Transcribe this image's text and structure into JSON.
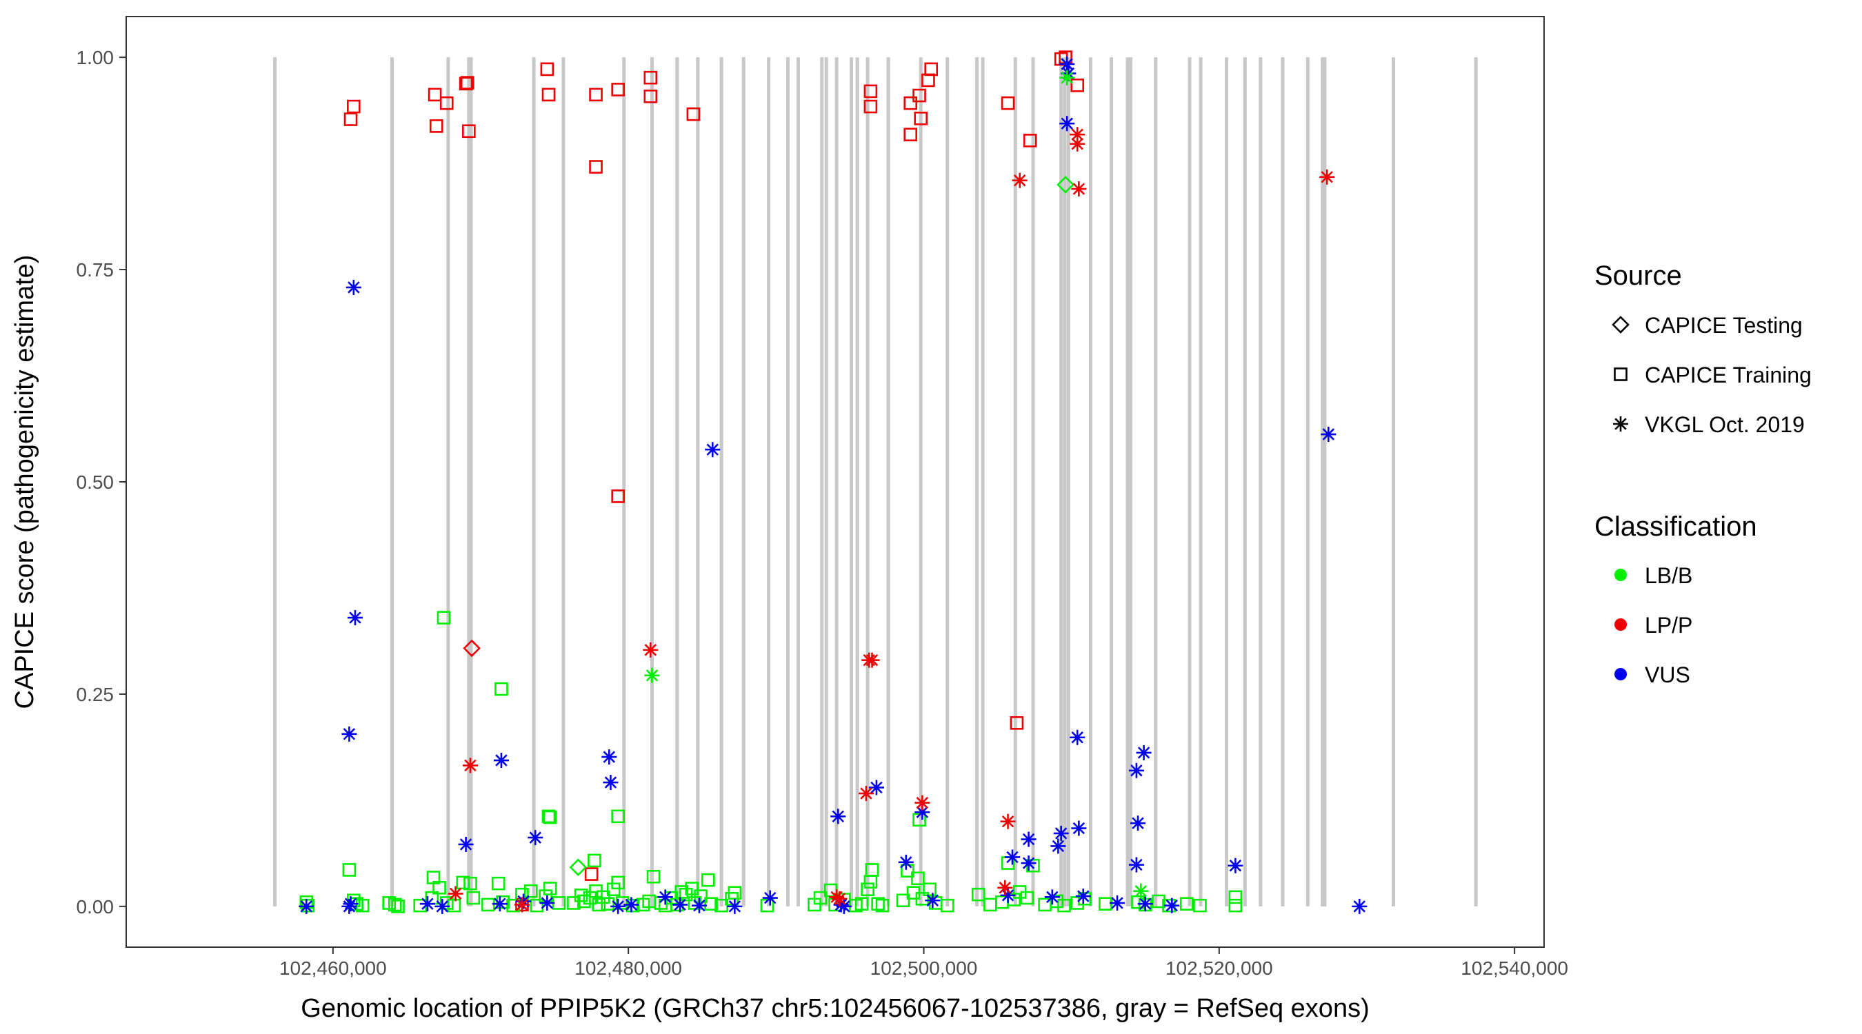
{
  "chart_data": {
    "type": "scatter",
    "xlabel": "Genomic location of PPIP5K2 (GRCh37 chr5:102456067-102537386, gray = RefSeq exons)",
    "ylabel": "CAPICE score (pathogenicity estimate)",
    "xlim": [
      102446000,
      102542000
    ],
    "ylim": [
      -0.048,
      1.048
    ],
    "x_ticks": [
      102460000,
      102480000,
      102500000,
      102520000,
      102540000
    ],
    "x_tick_labels": [
      "102,460,000",
      "102,480,000",
      "102,500,000",
      "102,520,000",
      "102,540,000"
    ],
    "y_ticks": [
      0,
      0.25,
      0.5,
      0.75,
      1
    ],
    "y_tick_labels": [
      "0.00",
      "0.25",
      "0.50",
      "0.75",
      "1.00"
    ],
    "grid": false,
    "exons": [
      102456067,
      102464000,
      102467800,
      102469200,
      102469350,
      102473600,
      102475600,
      102479700,
      102481600,
      102483300,
      102484700,
      102486300,
      102487800,
      102489500,
      102490800,
      102491500,
      102493100,
      102493400,
      102494100,
      102495100,
      102495500,
      102496200,
      102497600,
      102499800,
      102501600,
      102503600,
      102504000,
      102506200,
      102507400,
      102509300,
      102509550,
      102509800,
      102511300,
      102512700,
      102513800,
      102514000,
      102515700,
      102518000,
      102518750,
      102520500,
      102521750,
      102522800,
      102524300,
      102526000,
      102527000,
      102527150,
      102531800,
      102537386
    ],
    "legend_source": {
      "title": "Source",
      "items": [
        {
          "label": "CAPICE Testing",
          "shape": "diamond"
        },
        {
          "label": "CAPICE Training",
          "shape": "square"
        },
        {
          "label": "VKGL Oct. 2019",
          "shape": "asterisk"
        }
      ]
    },
    "legend_classification": {
      "title": "Classification",
      "items": [
        {
          "label": "LB/B",
          "color": "#00ee00"
        },
        {
          "label": "LP/P",
          "color": "#ee0000"
        },
        {
          "label": "VUS",
          "color": "#0000ee"
        }
      ]
    },
    "series": [
      {
        "source": "CAPICE Training",
        "classification": "LP/P",
        "points": [
          [
            102461200,
            0.927
          ],
          [
            102461400,
            0.942
          ],
          [
            102466900,
            0.956
          ],
          [
            102467000,
            0.919
          ],
          [
            102467700,
            0.946
          ],
          [
            102469000,
            0.969
          ],
          [
            102469100,
            0.97
          ],
          [
            102469200,
            0.913
          ],
          [
            102474500,
            0.986
          ],
          [
            102474600,
            0.956
          ],
          [
            102477800,
            0.956
          ],
          [
            102477800,
            0.871
          ],
          [
            102479300,
            0.962
          ],
          [
            102479300,
            0.483
          ],
          [
            102481500,
            0.976
          ],
          [
            102481500,
            0.954
          ],
          [
            102484400,
            0.933
          ],
          [
            102477500,
            0.038
          ],
          [
            102472800,
            0.002
          ],
          [
            102496400,
            0.96
          ],
          [
            102496400,
            0.942
          ],
          [
            102499100,
            0.909
          ],
          [
            102499100,
            0.946
          ],
          [
            102499700,
            0.955
          ],
          [
            102499800,
            0.928
          ],
          [
            102500300,
            0.973
          ],
          [
            102500500,
            0.986
          ],
          [
            102505700,
            0.946
          ],
          [
            102506300,
            0.216
          ],
          [
            102507200,
            0.902
          ],
          [
            102509300,
            0.998
          ],
          [
            102509600,
            1.0
          ],
          [
            102510400,
            0.967
          ]
        ]
      },
      {
        "source": "CAPICE Training",
        "classification": "LB/B",
        "points": [
          [
            102458200,
            0.005
          ],
          [
            102458300,
            0.001
          ],
          [
            102461100,
            0.043
          ],
          [
            102461400,
            0.007
          ],
          [
            102461600,
            0.003
          ],
          [
            102462000,
            0.001
          ],
          [
            102463800,
            0.004
          ],
          [
            102464200,
            0.002
          ],
          [
            102464400,
            0.0
          ],
          [
            102465900,
            0.001
          ],
          [
            102466700,
            0.01
          ],
          [
            102466800,
            0.034
          ],
          [
            102467500,
            0.34
          ],
          [
            102467200,
            0.022
          ],
          [
            102467700,
            0.004
          ],
          [
            102468200,
            0.001
          ],
          [
            102468800,
            0.028
          ],
          [
            102469300,
            0.027
          ],
          [
            102469500,
            0.01
          ],
          [
            102470500,
            0.002
          ],
          [
            102471200,
            0.027
          ],
          [
            102471400,
            0.256
          ],
          [
            102471500,
            0.005
          ],
          [
            102472200,
            0.001
          ],
          [
            102472800,
            0.014
          ],
          [
            102473400,
            0.018
          ],
          [
            102473800,
            0.001
          ],
          [
            102474400,
            0.012
          ],
          [
            102474600,
            0.106
          ],
          [
            102474700,
            0.105
          ],
          [
            102474700,
            0.021
          ],
          [
            102475300,
            0.004
          ],
          [
            102476300,
            0.004
          ],
          [
            102476800,
            0.013
          ],
          [
            102477000,
            0.006
          ],
          [
            102477400,
            0.01
          ],
          [
            102477700,
            0.054
          ],
          [
            102477800,
            0.018
          ],
          [
            102478000,
            0.002
          ],
          [
            102478300,
            0.011
          ],
          [
            102478600,
            0.003
          ],
          [
            102479000,
            0.02
          ],
          [
            102479300,
            0.106
          ],
          [
            102479300,
            0.028
          ],
          [
            102479600,
            0.004
          ],
          [
            102480300,
            0.001
          ],
          [
            102481000,
            0.002
          ],
          [
            102481400,
            0.006
          ],
          [
            102481700,
            0.035
          ],
          [
            102482200,
            0.004
          ],
          [
            102482500,
            0.001
          ],
          [
            102482900,
            0.01
          ],
          [
            102483300,
            0.002
          ],
          [
            102483600,
            0.017
          ],
          [
            102483900,
            0.014
          ],
          [
            102484300,
            0.021
          ],
          [
            102484500,
            0.004
          ],
          [
            102484900,
            0.012
          ],
          [
            102485400,
            0.031
          ],
          [
            102485600,
            0.003
          ],
          [
            102486300,
            0.001
          ],
          [
            102487000,
            0.009
          ],
          [
            102487200,
            0.016
          ],
          [
            102489400,
            0.001
          ],
          [
            102492600,
            0.002
          ],
          [
            102493000,
            0.01
          ],
          [
            102493700,
            0.019
          ],
          [
            102494000,
            0.002
          ],
          [
            102494600,
            0.008
          ],
          [
            102495400,
            0.001
          ],
          [
            102495800,
            0.003
          ],
          [
            102496200,
            0.02
          ],
          [
            102496400,
            0.029
          ],
          [
            102496500,
            0.043
          ],
          [
            102496900,
            0.003
          ],
          [
            102497200,
            0.001
          ],
          [
            102498600,
            0.007
          ],
          [
            102498900,
            0.042
          ],
          [
            102499300,
            0.016
          ],
          [
            102499600,
            0.033
          ],
          [
            102499700,
            0.102
          ],
          [
            102499900,
            0.009
          ],
          [
            102500400,
            0.02
          ],
          [
            102500800,
            0.004
          ],
          [
            102501600,
            0.001
          ],
          [
            102503700,
            0.014
          ],
          [
            102504500,
            0.002
          ],
          [
            102505300,
            0.005
          ],
          [
            102505700,
            0.051
          ],
          [
            102506100,
            0.008
          ],
          [
            102506500,
            0.017
          ],
          [
            102507000,
            0.01
          ],
          [
            102507400,
            0.048
          ],
          [
            102508200,
            0.002
          ],
          [
            102509000,
            0.006
          ],
          [
            102509500,
            0.001
          ],
          [
            102510400,
            0.004
          ],
          [
            102510900,
            0.009
          ],
          [
            102512300,
            0.003
          ],
          [
            102514500,
            0.005
          ],
          [
            102515000,
            0.002
          ],
          [
            102515900,
            0.006
          ],
          [
            102516600,
            0.001
          ],
          [
            102517800,
            0.003
          ],
          [
            102518700,
            0.001
          ],
          [
            102521100,
            0.011
          ],
          [
            102521100,
            0.001
          ]
        ]
      },
      {
        "source": "CAPICE Testing",
        "classification": "LP/P",
        "points": [
          [
            102469400,
            0.304
          ]
        ]
      },
      {
        "source": "CAPICE Testing",
        "classification": "LB/B",
        "points": [
          [
            102476600,
            0.046
          ],
          [
            102509600,
            0.85
          ]
        ]
      },
      {
        "source": "VKGL Oct. 2019",
        "classification": "VUS",
        "points": [
          [
            102458200,
            0.0
          ],
          [
            102461400,
            0.729
          ],
          [
            102461500,
            0.34
          ],
          [
            102461100,
            0.203
          ],
          [
            102461200,
            0.003
          ],
          [
            102461100,
            0.0
          ],
          [
            102466400,
            0.003
          ],
          [
            102467400,
            0.0
          ],
          [
            102469000,
            0.073
          ],
          [
            102471400,
            0.172
          ],
          [
            102471300,
            0.003
          ],
          [
            102472900,
            0.006
          ],
          [
            102473700,
            0.081
          ],
          [
            102474500,
            0.004
          ],
          [
            102478700,
            0.176
          ],
          [
            102478800,
            0.146
          ],
          [
            102479300,
            0.0
          ],
          [
            102480200,
            0.002
          ],
          [
            102482500,
            0.011
          ],
          [
            102483500,
            0.002
          ],
          [
            102484800,
            0.001
          ],
          [
            102485700,
            0.538
          ],
          [
            102487200,
            0.0
          ],
          [
            102489600,
            0.01
          ],
          [
            102494200,
            0.106
          ],
          [
            102494400,
            0.002
          ],
          [
            102494600,
            0.0
          ],
          [
            102496800,
            0.14
          ],
          [
            102498800,
            0.052
          ],
          [
            102499900,
            0.111
          ],
          [
            102500600,
            0.007
          ],
          [
            102505700,
            0.013
          ],
          [
            102506000,
            0.058
          ],
          [
            102507100,
            0.079
          ],
          [
            102507100,
            0.051
          ],
          [
            102508700,
            0.011
          ],
          [
            102509300,
            0.086
          ],
          [
            102509100,
            0.071
          ],
          [
            102509700,
            0.992
          ],
          [
            102509800,
            0.981
          ],
          [
            102509700,
            0.922
          ],
          [
            102510400,
            0.199
          ],
          [
            102510500,
            0.092
          ],
          [
            102510800,
            0.012
          ],
          [
            102513100,
            0.004
          ],
          [
            102514400,
            0.16
          ],
          [
            102514500,
            0.098
          ],
          [
            102514400,
            0.049
          ],
          [
            102514900,
            0.181
          ],
          [
            102515000,
            0.003
          ],
          [
            102516800,
            0.001
          ],
          [
            102521100,
            0.048
          ],
          [
            102527400,
            0.556
          ],
          [
            102529500,
            0.0
          ]
        ]
      },
      {
        "source": "VKGL Oct. 2019",
        "classification": "LP/P",
        "points": [
          [
            102468300,
            0.015
          ],
          [
            102469300,
            0.166
          ],
          [
            102472800,
            0.002
          ],
          [
            102481500,
            0.302
          ],
          [
            102494100,
            0.011
          ],
          [
            102494300,
            0.009
          ],
          [
            102496300,
            0.29
          ],
          [
            102496500,
            0.29
          ],
          [
            102496100,
            0.133
          ],
          [
            102499900,
            0.122
          ],
          [
            102505700,
            0.1
          ],
          [
            102505500,
            0.022
          ],
          [
            102506500,
            0.855
          ],
          [
            102510400,
            0.909
          ],
          [
            102510400,
            0.898
          ],
          [
            102510500,
            0.845
          ],
          [
            102527300,
            0.859
          ]
        ]
      },
      {
        "source": "VKGL Oct. 2019",
        "classification": "LB/B",
        "points": [
          [
            102481600,
            0.272
          ],
          [
            102514700,
            0.018
          ],
          [
            102509700,
            0.976
          ]
        ]
      }
    ]
  }
}
